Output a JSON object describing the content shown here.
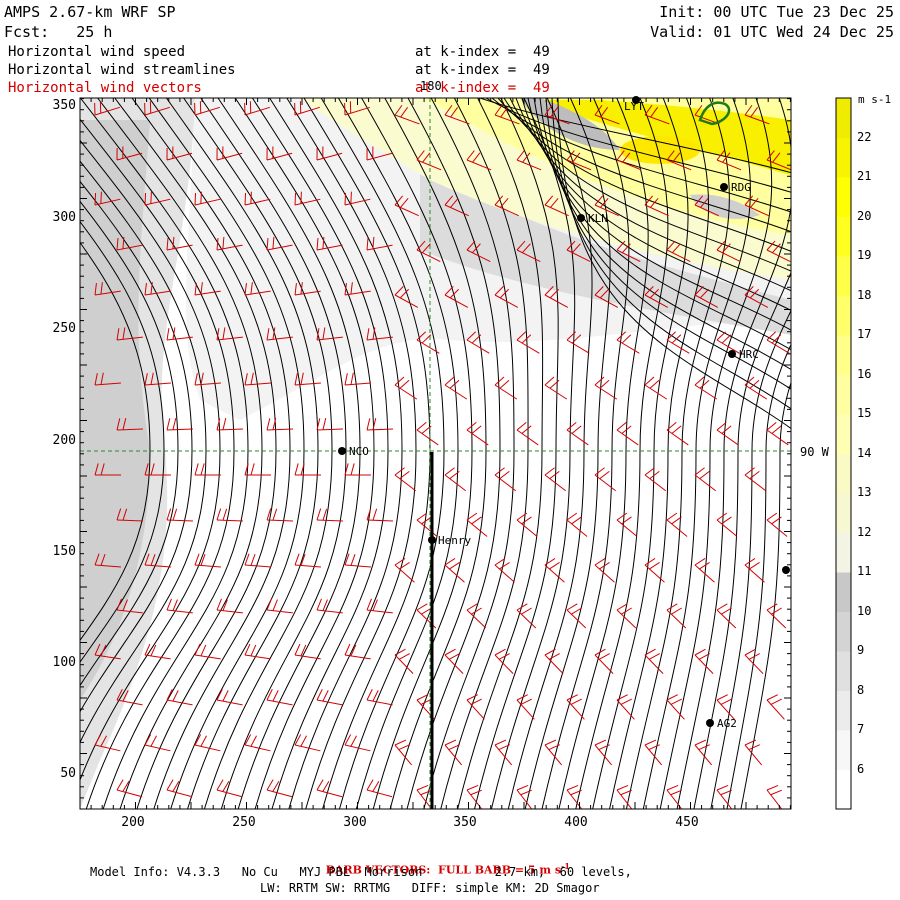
{
  "header": {
    "model_title": "AMPS 2.67-km WRF SP",
    "forecast": "Fcst:   25 h",
    "init": "Init: 00 UTC Tue 23 Dec 25",
    "valid": "Valid: 01 UTC Wed 24 Dec 25"
  },
  "fields": [
    {
      "name": "Horizontal wind speed",
      "level": "at k-index =  49",
      "color": "#000000"
    },
    {
      "name": "Horizontal wind streamlines",
      "level": "at k-index =  49",
      "color": "#000000"
    },
    {
      "name": "Horizontal wind vectors",
      "level": "at k-index =  49",
      "color": "#d40000"
    }
  ],
  "colorbar": {
    "units": "m s-1",
    "levels": [
      6,
      7,
      8,
      9,
      10,
      11,
      12,
      13,
      14,
      15,
      16,
      17,
      18,
      19,
      20,
      21,
      22
    ],
    "colors": [
      "#ffffff",
      "#f7f7f7",
      "#ececec",
      "#e0e0e0",
      "#d4d4d4",
      "#c8c8c8",
      "#f4f4e4",
      "#f7f7d2",
      "#fafac4",
      "#ffffb4",
      "#ffffa2",
      "#ffff8a",
      "#ffff6a",
      "#ffff48",
      "#ffff20",
      "#ffff00",
      "#f8f400",
      "#f0ec00"
    ]
  },
  "axes": {
    "x_ticks": [
      "200",
      "250",
      "300",
      "350",
      "400",
      "450"
    ],
    "y_ticks": [
      "350",
      "300",
      "250",
      "200",
      "150",
      "100",
      "50"
    ]
  },
  "grid_labels": {
    "meridian": "180",
    "parallel": "90 W"
  },
  "stations": [
    {
      "id": "LYT",
      "label": "LYT"
    },
    {
      "id": "RDG",
      "label": "RDG"
    },
    {
      "id": "KLN",
      "label": "KLN"
    },
    {
      "id": "HRC",
      "label": "HRC"
    },
    {
      "id": "NCO",
      "label": "NCO"
    },
    {
      "id": "Henry",
      "label": "Henry"
    },
    {
      "id": "AG2",
      "label": "AG2"
    },
    {
      "id": "edge",
      "label": ""
    }
  ],
  "footer": {
    "barb_note": "BARB VECTORS:  FULL BARB = 5 m s",
    "barb_sup": "-1",
    "model_info": "Model Info: V4.3.3   No Cu   MYJ PBL  Morrison          2.7 km,  60 levels,",
    "physics": "LW: RRTM SW: RRTMG   DIFF: simple KM: 2D Smagor"
  }
}
